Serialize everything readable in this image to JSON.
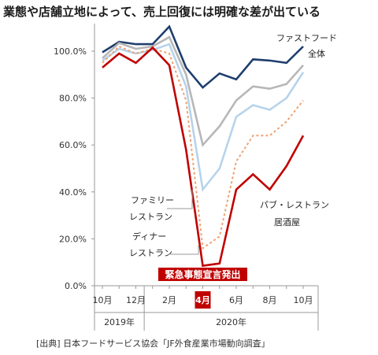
{
  "title": "業態や店舗立地によって、売上回復には明確な差が出ている",
  "source": "[出典] 日本フードサービス協会「JF外食産業市場動向調査」",
  "chart_data": {
    "type": "line",
    "ylim": [
      0,
      110
    ],
    "yticks": [
      0,
      20,
      40,
      60,
      80,
      100
    ],
    "ytick_labels": [
      "0.0%",
      "20.0%",
      "40.0%",
      "60.0%",
      "80.0%",
      "100.0%"
    ],
    "x": [
      "2019-10",
      "2019-11",
      "2019-12",
      "2020-01",
      "2020-02",
      "2020-03",
      "2020-04",
      "2020-05",
      "2020-06",
      "2020-07",
      "2020-08",
      "2020-09",
      "2020-10"
    ],
    "xtick_labels": [
      {
        "at": 0,
        "label": "10月"
      },
      {
        "at": 2,
        "label": "12月"
      },
      {
        "at": 4,
        "label": "2月"
      },
      {
        "at": 6,
        "label": "4月"
      },
      {
        "at": 8,
        "label": "6月"
      },
      {
        "at": 10,
        "label": "8月"
      },
      {
        "at": 12,
        "label": "10月"
      }
    ],
    "highlight_index": 6,
    "highlight_color": "#c00000",
    "years": [
      {
        "label": "2019年",
        "start": 0,
        "end": 2
      },
      {
        "label": "2020年",
        "start": 3,
        "end": 12
      }
    ],
    "event_label": "緊急事態宣言発出",
    "series": [
      {
        "name": "ファストフード",
        "color": "#1f3f6e",
        "dash": "",
        "values": [
          99.5,
          104,
          103,
          103,
          110.5,
          93,
          84.5,
          90.5,
          88,
          96.5,
          96,
          95,
          102
        ]
      },
      {
        "name": "全体",
        "color": "#b7b7b7",
        "dash": "",
        "values": [
          97,
          103.5,
          101,
          102,
          106,
          90,
          60,
          68,
          79,
          85,
          84,
          86,
          94
        ]
      },
      {
        "name": "ファミリーレストラン",
        "color": "#b7d3ec",
        "dash": "",
        "values": [
          96,
          101,
          99,
          100.5,
          103,
          85,
          41,
          50,
          72,
          77,
          75,
          80,
          91
        ]
      },
      {
        "name": "ディナーレストラン",
        "color": "#f0a070",
        "dash": "3,3",
        "values": [
          95,
          102,
          99,
          101,
          99,
          79,
          16,
          21,
          53,
          64,
          64,
          70,
          79
        ]
      },
      {
        "name": "パブ・レストラン 居酒屋",
        "color": "#c00000",
        "dash": "",
        "values": [
          93,
          99,
          95,
          101.5,
          94,
          58,
          8.5,
          9.5,
          41,
          47.5,
          41,
          51,
          64
        ]
      }
    ]
  },
  "labels": {
    "fastfood": "ファストフード",
    "total": "全体",
    "family_1": "ファミリー",
    "family_2": "レストラン",
    "dinner_1": "ディナー",
    "dinner_2": "レストラン",
    "pub_1": "パブ・レストラン",
    "pub_2": "居酒屋"
  }
}
